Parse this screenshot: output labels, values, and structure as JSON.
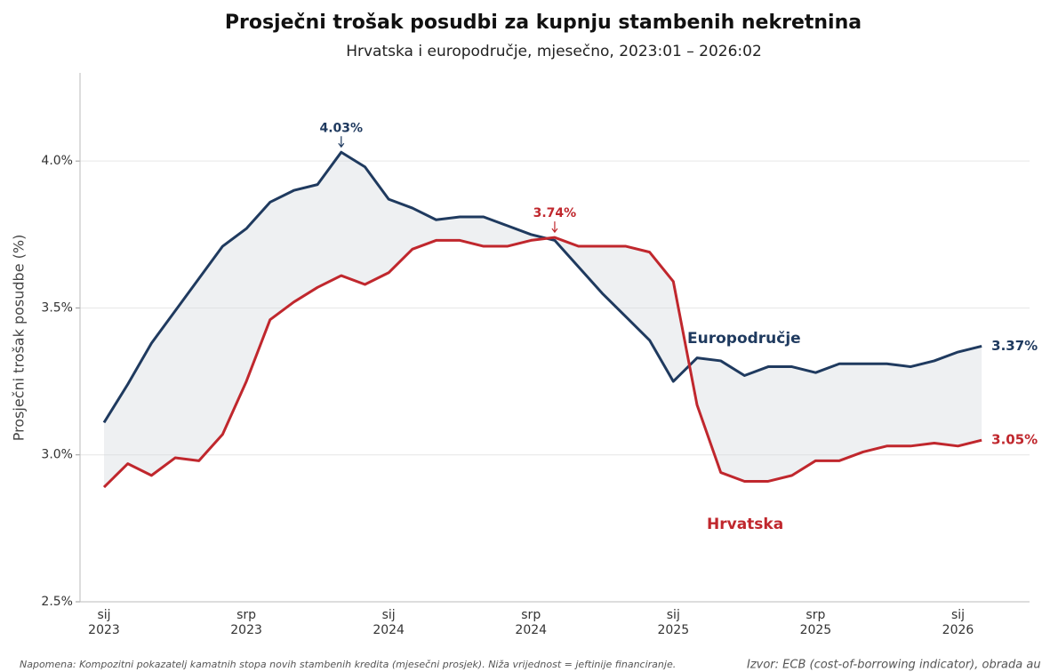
{
  "chart_data": {
    "type": "line",
    "title": "Prosječni trošak posudbi za kupnju stambenih nekretnina",
    "subtitle": "Hrvatska i europodručje, mjesečno, 2023:01 – 2026:02",
    "y_label": "Prosječni trošak posudbe (%)",
    "categories": [
      [
        "sij",
        "2023"
      ],
      null,
      null,
      null,
      null,
      null,
      [
        "srp",
        "2023"
      ],
      null,
      null,
      null,
      null,
      null,
      [
        "sij",
        "2024"
      ],
      null,
      null,
      null,
      null,
      null,
      [
        "srp",
        "2024"
      ],
      null,
      null,
      null,
      null,
      null,
      [
        "sij",
        "2025"
      ],
      null,
      null,
      null,
      null,
      null,
      [
        "srp",
        "2025"
      ],
      null,
      null,
      null,
      null,
      null,
      [
        "sij",
        "2026"
      ],
      null
    ],
    "series": [
      {
        "name": "Europodručje",
        "color": "#1f3a5f",
        "values": [
          3.11,
          3.24,
          3.38,
          3.49,
          3.6,
          3.71,
          3.77,
          3.86,
          3.9,
          3.92,
          4.03,
          3.98,
          3.87,
          3.84,
          3.8,
          3.81,
          3.81,
          3.78,
          3.75,
          3.73,
          3.64,
          3.55,
          3.47,
          3.39,
          3.25,
          3.33,
          3.32,
          3.27,
          3.3,
          3.3,
          3.28,
          3.31,
          3.31,
          3.31,
          3.3,
          3.32,
          3.35,
          3.37
        ],
        "value_labels": [
          null,
          null,
          null,
          null,
          null,
          null,
          null,
          null,
          null,
          null,
          "4.03%",
          null,
          null,
          null,
          null,
          null,
          null,
          null,
          null,
          null,
          null,
          null,
          null,
          null,
          null,
          null,
          null,
          null,
          null,
          null,
          null,
          null,
          null,
          null,
          null,
          null,
          null,
          "3.37%"
        ]
      },
      {
        "name": "Hrvatska",
        "color": "#c0272d",
        "values": [
          2.89,
          2.97,
          2.93,
          2.99,
          2.98,
          3.07,
          3.25,
          3.46,
          3.52,
          3.57,
          3.61,
          3.58,
          3.62,
          3.7,
          3.73,
          3.73,
          3.71,
          3.71,
          3.73,
          3.74,
          3.71,
          3.71,
          3.71,
          3.69,
          3.59,
          3.17,
          2.94,
          2.91,
          2.91,
          2.93,
          2.98,
          2.98,
          3.01,
          3.03,
          3.03,
          3.04,
          3.03,
          3.05
        ],
        "value_labels": [
          null,
          null,
          null,
          null,
          null,
          null,
          null,
          null,
          null,
          null,
          null,
          null,
          null,
          null,
          null,
          null,
          null,
          null,
          null,
          "3.74%",
          null,
          null,
          null,
          null,
          null,
          null,
          null,
          null,
          null,
          null,
          null,
          null,
          null,
          null,
          null,
          null,
          null,
          "3.05%"
        ]
      }
    ],
    "ylim": [
      2.5,
      4.3
    ],
    "yticks": [
      {
        "value": 2.5,
        "label": "2.5%"
      },
      {
        "value": 3.0,
        "label": "3.0%"
      },
      {
        "value": 3.5,
        "label": "3.5%"
      },
      {
        "value": 4.0,
        "label": "4.0%"
      }
    ],
    "grid": true,
    "fill_between": true,
    "note": "Napomena: Kompozitni pokazatelj kamatnih stopa novih stambenih kredita (mjesečni prosjek). Niža vrijednost = jeftinije financiranje.",
    "source": "Izvor: ECB (cost-of-borrowing indicator), obrada au"
  }
}
